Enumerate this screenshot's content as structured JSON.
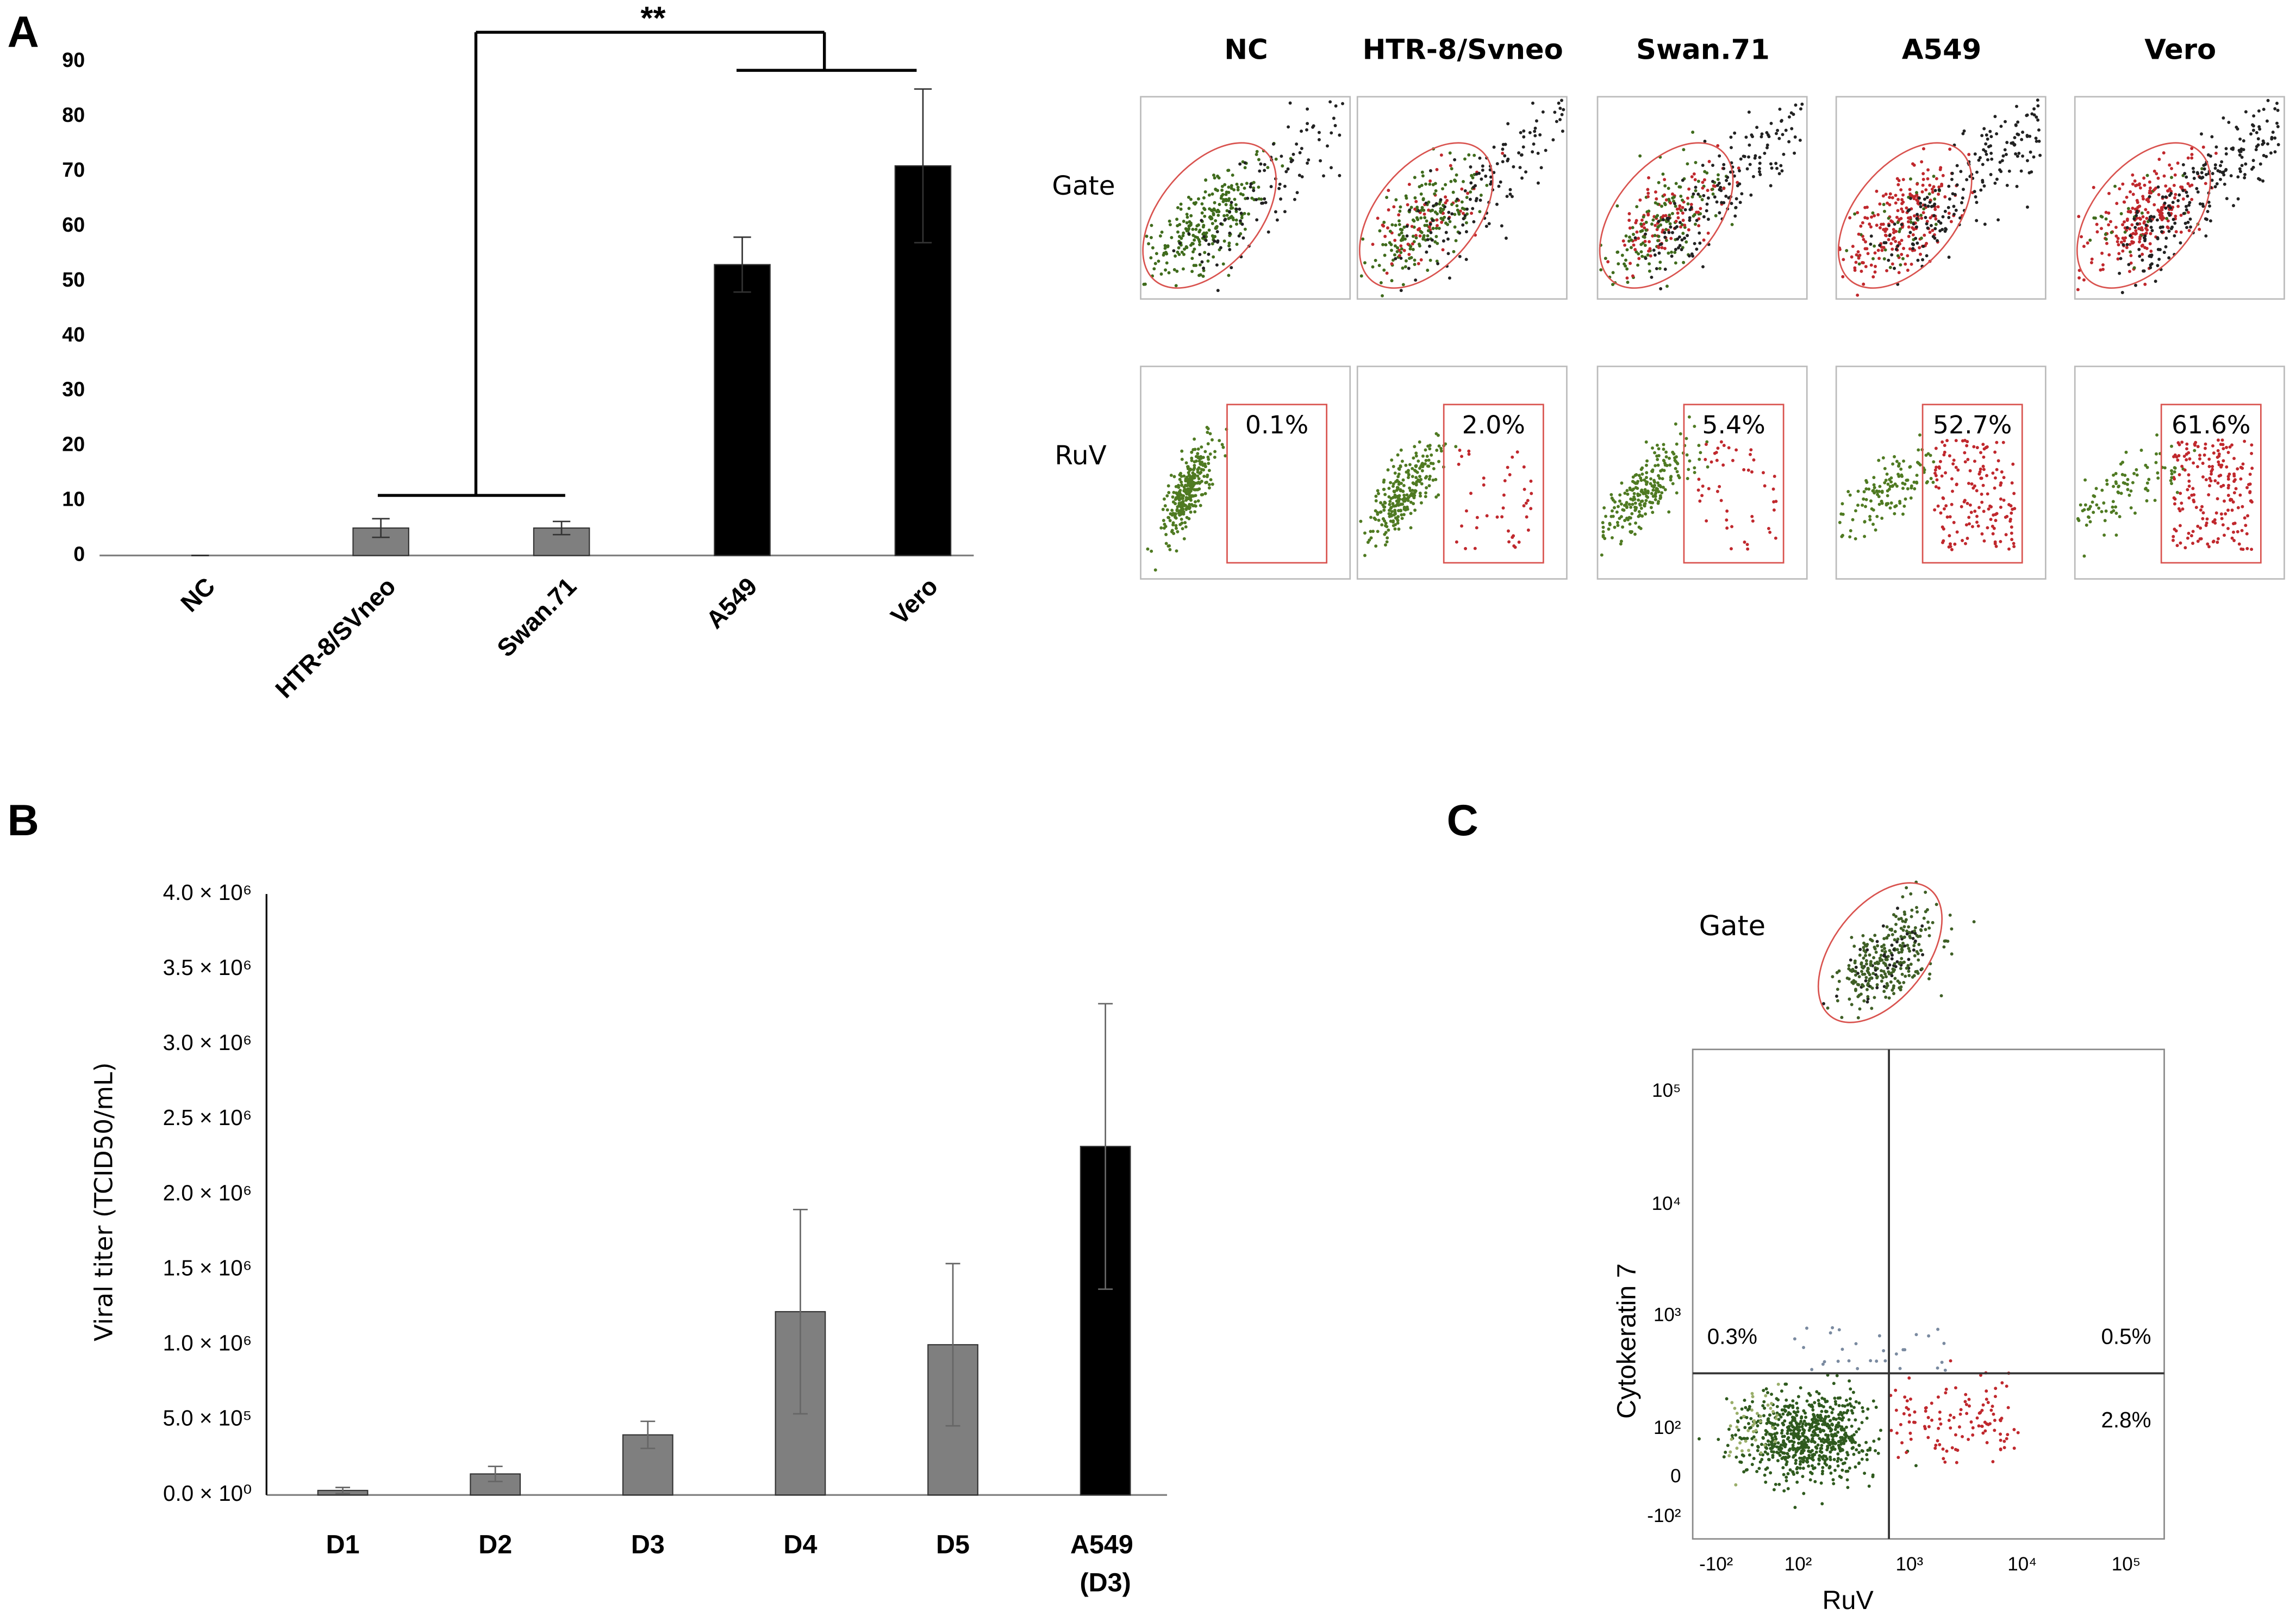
{
  "panel_labels": [
    "A",
    "B",
    "C"
  ],
  "chart_data": [
    {
      "type": "bar",
      "categories": [
        "NC",
        "HTR-8/SVneo",
        "Swan.71",
        "A549",
        "Vero"
      ],
      "values": [
        0,
        5,
        5,
        53,
        71
      ],
      "errors": [
        0,
        1.7,
        1.2,
        5,
        14
      ],
      "colors": [
        "#7f7f7f",
        "#7f7f7f",
        "#7f7f7f",
        "#000000",
        "#000000"
      ],
      "ylim": [
        0,
        90
      ],
      "yticks": [
        0,
        10,
        20,
        30,
        40,
        50,
        60,
        70,
        80,
        90
      ],
      "grid": false,
      "annotations": [
        "**"
      ]
    },
    {
      "type": "bar",
      "y_label": "Viral titer (TCID50/mL)",
      "categories": [
        "D1",
        "D2",
        "D3",
        "D4",
        "D5",
        "A549 (D3)"
      ],
      "values": [
        30000,
        140000,
        400000,
        1220000,
        1000000,
        2320000
      ],
      "errors": [
        20000,
        50000,
        90000,
        680000,
        540000,
        950000
      ],
      "colors": [
        "#7f7f7f",
        "#7f7f7f",
        "#7f7f7f",
        "#7f7f7f",
        "#7f7f7f",
        "#000000"
      ],
      "ylim": [
        0,
        4000000
      ],
      "yticks": [
        {
          "value": 0,
          "label": "0.0 × 10⁰"
        },
        {
          "value": 500000,
          "label": "5.0 × 10⁵"
        },
        {
          "value": 1000000,
          "label": "1.0 × 10⁶"
        },
        {
          "value": 1500000,
          "label": "1.5 × 10⁶"
        },
        {
          "value": 2000000,
          "label": "2.0 × 10⁶"
        },
        {
          "value": 2500000,
          "label": "2.5 × 10⁶"
        },
        {
          "value": 3000000,
          "label": "3.0 × 10⁶"
        },
        {
          "value": 3500000,
          "label": "3.5 × 10⁶"
        },
        {
          "value": 4000000,
          "label": "4.0 × 10⁶"
        }
      ],
      "grid": false
    }
  ],
  "flow_a": {
    "columns": [
      "NC",
      "HTR-8/Svneo",
      "Swan.71",
      "A549",
      "Vero"
    ],
    "rows": [
      "Gate",
      "RuV"
    ],
    "positive": [
      "0.1%",
      "2.0%",
      "5.4%",
      "52.7%",
      "61.6%"
    ]
  },
  "panel_c": {
    "gate_label": "Gate",
    "x_label": "RuV",
    "y_label": "Cytokeratin 7",
    "quadrants": {
      "upper_left": "0.3%",
      "upper_right": "0.5%",
      "lower_right": "2.8%"
    },
    "xticks": [
      "-10²",
      "10²",
      "10³",
      "10⁴",
      "10⁵"
    ],
    "yticks": [
      "10⁵",
      "10⁴",
      "10³",
      "10²",
      "0",
      "-10²"
    ]
  }
}
